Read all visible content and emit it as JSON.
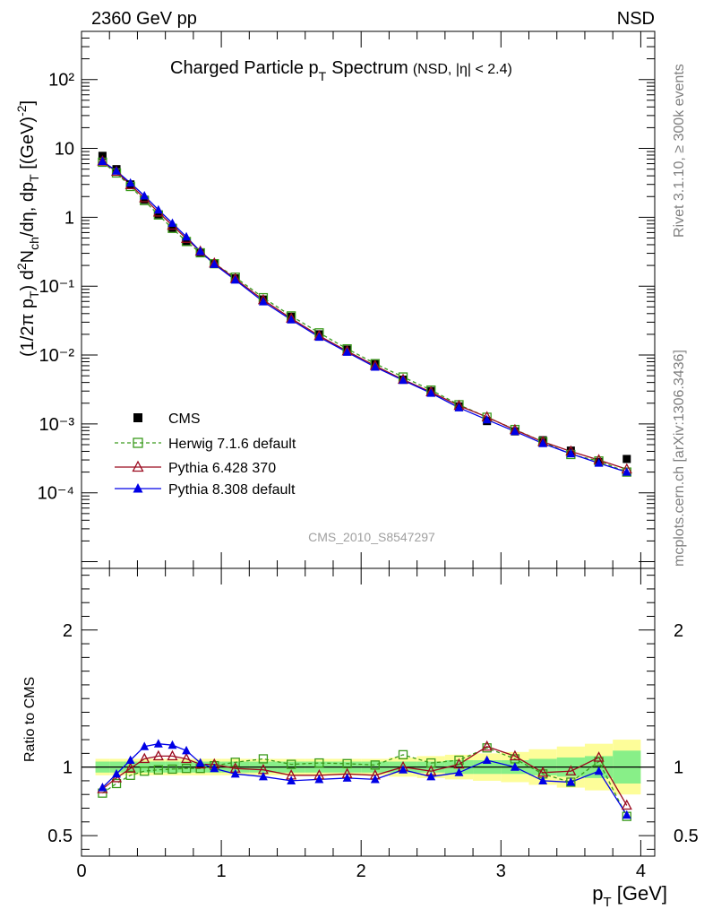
{
  "header": {
    "left": "2360 GeV pp",
    "right": "NSD"
  },
  "side_labels": {
    "top": "Rivet 3.1.10, ≥ 300k events",
    "bottom": "mcplots.cern.ch [arXiv:1306.3436]"
  },
  "colors": {
    "cms": "#000000",
    "herwig": "#3a9a1c",
    "pythia6": "#9b0a1f",
    "pythia8": "#0000e6",
    "band_inner": "#88ef88",
    "band_outer": "#fdfd99"
  },
  "chart_data": [
    {
      "type": "scatter",
      "panel": "main",
      "title": "Charged Particle p",
      "title_sub": "T",
      "title_rest": "Spectrum",
      "title_small": "(NSD, |η| < 2.4)",
      "ylabel": "(1/2π p_T) d²N_ch/dη, dp_T [(GeV)⁻²]",
      "yscale": "log",
      "xlim": [
        0,
        4.1
      ],
      "ylim": [
        8e-06,
        500
      ],
      "ytick_labels": [
        "10⁻⁴",
        "10⁻³",
        "10⁻²",
        "10⁻¹",
        "1",
        "10",
        "10²"
      ],
      "watermark": "CMS_2010_S8547297",
      "legend_position": "lower-left",
      "legend": [
        {
          "label": "CMS",
          "marker": "square-filled",
          "color": "#000000"
        },
        {
          "label": "Herwig 7.1.6 default",
          "marker": "square-open",
          "color": "#3a9a1c",
          "dash": true
        },
        {
          "label": "Pythia 6.428 370",
          "marker": "triangle-open",
          "color": "#9b0a1f"
        },
        {
          "label": "Pythia 8.308 default",
          "marker": "triangle-filled",
          "color": "#0000e6"
        }
      ],
      "x": [
        0.15,
        0.25,
        0.35,
        0.45,
        0.55,
        0.65,
        0.75,
        0.85,
        0.95,
        1.1,
        1.3,
        1.5,
        1.7,
        1.9,
        2.1,
        2.3,
        2.5,
        2.7,
        2.9,
        3.1,
        3.3,
        3.5,
        3.7,
        3.9
      ],
      "series": [
        {
          "name": "CMS",
          "values": [
            7.8,
            5.0,
            3.0,
            1.8,
            1.1,
            0.7,
            0.45,
            0.31,
            0.21,
            0.13,
            0.064,
            0.036,
            0.02,
            0.012,
            0.0074,
            0.0044,
            0.003,
            0.0018,
            0.0011,
            0.00078,
            0.00058,
            0.00041,
            0.00028,
            0.00031
          ]
        },
        {
          "name": "Herwig 7.1.6 default",
          "values": [
            6.3,
            4.4,
            2.8,
            1.75,
            1.08,
            0.69,
            0.445,
            0.305,
            0.212,
            0.135,
            0.068,
            0.037,
            0.021,
            0.0123,
            0.0075,
            0.0048,
            0.0031,
            0.0019,
            0.00125,
            0.00083,
            0.00055,
            0.00036,
            0.00029,
            0.0002
          ]
        },
        {
          "name": "Pythia 6.428 370",
          "values": [
            6.5,
            4.6,
            2.95,
            1.9,
            1.18,
            0.76,
            0.49,
            0.32,
            0.215,
            0.128,
            0.063,
            0.034,
            0.019,
            0.0114,
            0.007,
            0.0044,
            0.0029,
            0.00184,
            0.00126,
            0.00082,
            0.00055,
            0.0004,
            0.0003,
            0.00022
          ]
        },
        {
          "name": "Pythia 8.308 default",
          "values": [
            6.5,
            4.7,
            3.15,
            2.05,
            1.28,
            0.82,
            0.52,
            0.32,
            0.208,
            0.123,
            0.0595,
            0.0325,
            0.0182,
            0.011,
            0.0067,
            0.0043,
            0.0028,
            0.00172,
            0.00115,
            0.00078,
            0.00052,
            0.00037,
            0.00027,
            0.0002
          ]
        }
      ]
    },
    {
      "type": "line",
      "panel": "ratio",
      "ylabel": "Ratio to CMS",
      "xlabel": "p_T [GeV]",
      "xlim": [
        0,
        4.1
      ],
      "ylim": [
        0.35,
        2.45
      ],
      "xtick_labels": [
        "0",
        "1",
        "2",
        "3",
        "4"
      ],
      "ytick_labels": [
        "0.5",
        "1",
        "2"
      ],
      "x": [
        0.15,
        0.25,
        0.35,
        0.45,
        0.55,
        0.65,
        0.75,
        0.85,
        0.95,
        1.1,
        1.3,
        1.5,
        1.7,
        1.9,
        2.1,
        2.3,
        2.5,
        2.7,
        2.9,
        3.1,
        3.3,
        3.5,
        3.7,
        3.9
      ],
      "band_edges": [
        0.1,
        0.2,
        0.3,
        0.4,
        0.5,
        0.6,
        0.7,
        0.8,
        0.9,
        1.0,
        1.2,
        1.4,
        1.6,
        1.8,
        2.0,
        2.2,
        2.4,
        2.6,
        2.8,
        3.0,
        3.2,
        3.4,
        3.6,
        3.8,
        4.0
      ],
      "band_inner": [
        0.04,
        0.04,
        0.04,
        0.04,
        0.04,
        0.04,
        0.04,
        0.04,
        0.04,
        0.04,
        0.04,
        0.04,
        0.04,
        0.04,
        0.04,
        0.04,
        0.04,
        0.05,
        0.05,
        0.05,
        0.06,
        0.07,
        0.08,
        0.12
      ],
      "band_outer": [
        0.06,
        0.06,
        0.06,
        0.06,
        0.06,
        0.06,
        0.06,
        0.06,
        0.06,
        0.06,
        0.06,
        0.06,
        0.06,
        0.06,
        0.06,
        0.07,
        0.08,
        0.09,
        0.1,
        0.11,
        0.13,
        0.15,
        0.17,
        0.2
      ],
      "series": [
        {
          "name": "Herwig 7.1.6 default",
          "values": [
            0.81,
            0.88,
            0.94,
            0.97,
            0.98,
            0.985,
            0.99,
            0.99,
            1.01,
            1.035,
            1.06,
            1.02,
            1.03,
            1.025,
            1.015,
            1.09,
            1.03,
            1.05,
            1.14,
            1.06,
            0.95,
            0.89,
            1.04,
            0.64
          ]
        },
        {
          "name": "Pythia 6.428 370",
          "values": [
            0.84,
            0.92,
            0.99,
            1.06,
            1.08,
            1.08,
            1.06,
            1.02,
            1.02,
            0.99,
            0.98,
            0.94,
            0.94,
            0.95,
            0.94,
            1.0,
            0.97,
            1.02,
            1.15,
            1.08,
            0.96,
            0.97,
            1.07,
            0.72
          ]
        },
        {
          "name": "Pythia 8.308 default",
          "values": [
            0.85,
            0.95,
            1.05,
            1.15,
            1.17,
            1.16,
            1.12,
            1.03,
            0.99,
            0.95,
            0.93,
            0.9,
            0.91,
            0.92,
            0.91,
            0.98,
            0.93,
            0.96,
            1.05,
            1.0,
            0.9,
            0.89,
            0.97,
            0.65
          ]
        }
      ]
    }
  ]
}
